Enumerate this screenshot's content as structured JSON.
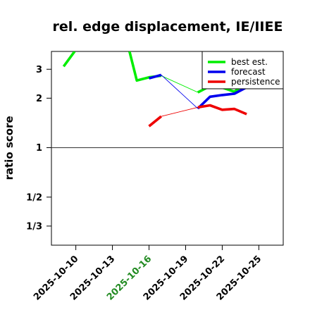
{
  "chart_data": {
    "type": "line",
    "title": "rel. edge displacement, IE/IIEE",
    "ylabel": "ratio score",
    "xlabel": "",
    "y_scale": "log",
    "ylim": [
      0.255,
      3.85
    ],
    "xlim": [
      "2025-10-08",
      "2025-10-27"
    ],
    "y_ticks": [
      {
        "value": 3,
        "label": "3"
      },
      {
        "value": 2,
        "label": "2"
      },
      {
        "value": 1,
        "label": "1"
      },
      {
        "value": 0.5,
        "label": "1/2"
      },
      {
        "value": 0.3333,
        "label": "1/3"
      }
    ],
    "x_ticks": [
      {
        "date": "2025-10-10",
        "label": "2025-10-10",
        "color": "#000000"
      },
      {
        "date": "2025-10-13",
        "label": "2025-10-13",
        "color": "#000000"
      },
      {
        "date": "2025-10-16",
        "label": "2025-10-16",
        "color": "#228B22"
      },
      {
        "date": "2025-10-19",
        "label": "2025-10-19",
        "color": "#000000"
      },
      {
        "date": "2025-10-22",
        "label": "2025-10-22",
        "color": "#000000"
      },
      {
        "date": "2025-10-25",
        "label": "2025-10-25",
        "color": "#000000"
      }
    ],
    "reference_line": 1,
    "legend_position": "top-right",
    "series": [
      {
        "name": "best est.",
        "color": "#00ee00",
        "segments": [
          [
            [
              "2025-10-09",
              3.12
            ],
            [
              "2025-10-09.9",
              3.85
            ]
          ],
          [
            [
              "2025-10-14.4",
              3.85
            ],
            [
              "2025-10-15",
              2.56
            ],
            [
              "2025-10-16",
              2.68
            ],
            [
              "2025-10-17",
              2.74
            ]
          ],
          [
            [
              "2025-10-20",
              2.17
            ],
            [
              "2025-10-21",
              2.37
            ],
            [
              "2025-10-22",
              2.32
            ],
            [
              "2025-10-23",
              2.19
            ],
            [
              "2025-10-24",
              2.49
            ]
          ]
        ],
        "connector": [
          [
            "2025-10-17",
            2.74
          ],
          [
            "2025-10-20",
            2.17
          ]
        ]
      },
      {
        "name": "forecast",
        "color": "#0000ee",
        "segments": [
          [
            [
              "2025-10-16",
              2.64
            ],
            [
              "2025-10-17",
              2.77
            ]
          ],
          [
            [
              "2025-10-20",
              1.73
            ],
            [
              "2025-10-21",
              2.04
            ],
            [
              "2025-10-22",
              2.09
            ],
            [
              "2025-10-23",
              2.13
            ],
            [
              "2025-10-24",
              2.33
            ]
          ]
        ],
        "connector": [
          [
            "2025-10-17",
            2.77
          ],
          [
            "2025-10-20",
            1.73
          ]
        ]
      },
      {
        "name": "persistence",
        "color": "#ee0000",
        "segments": [
          [
            [
              "2025-10-16",
              1.35
            ],
            [
              "2025-10-17",
              1.55
            ]
          ],
          [
            [
              "2025-10-20",
              1.76
            ],
            [
              "2025-10-21",
              1.81
            ],
            [
              "2025-10-22",
              1.7
            ],
            [
              "2025-10-23",
              1.72
            ],
            [
              "2025-10-24",
              1.6
            ]
          ]
        ],
        "connector": [
          [
            "2025-10-17",
            1.55
          ],
          [
            "2025-10-20",
            1.76
          ]
        ]
      }
    ]
  }
}
